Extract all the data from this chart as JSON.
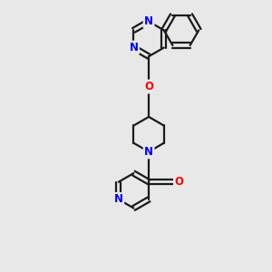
{
  "bg_color": "#e8e8e8",
  "bond_color": "#1a1a1a",
  "N_color": "#0000ff",
  "O_color": "#ff0000",
  "line_width": 1.6,
  "font_size_atom": 8.5,
  "xlim": [
    -2.5,
    3.5
  ],
  "ylim": [
    -5.5,
    3.5
  ]
}
